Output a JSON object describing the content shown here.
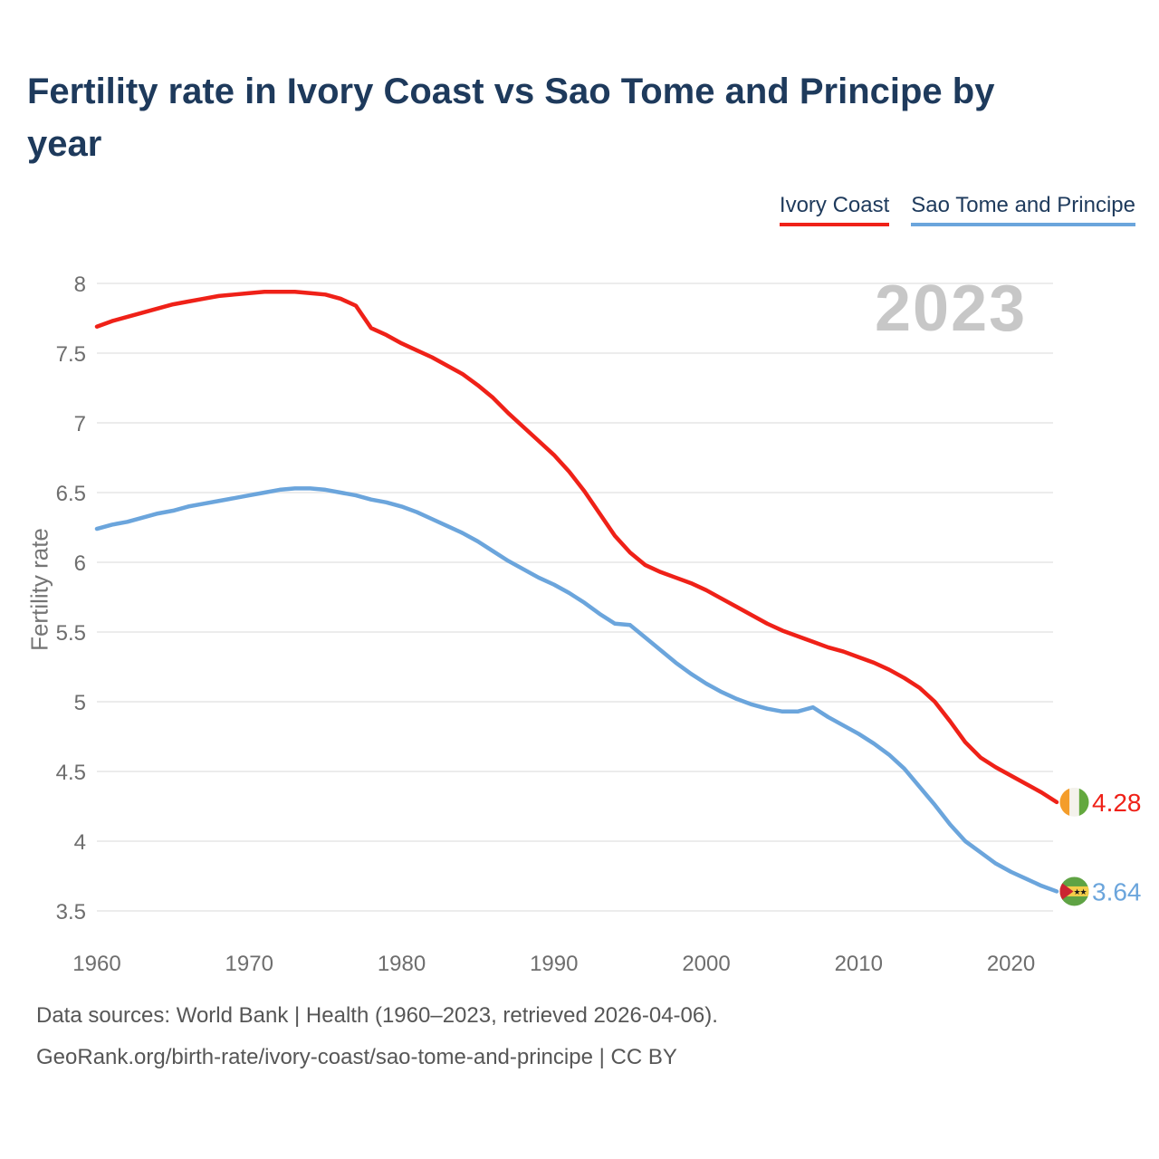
{
  "header": {
    "title": "Fertility rate in Ivory Coast vs Sao Tome and Principe by year"
  },
  "legend": {
    "items": [
      {
        "label": "Ivory Coast",
        "color": "#ef2118"
      },
      {
        "label": "Sao Tome and Principe",
        "color": "#6ba5dc"
      }
    ]
  },
  "watermark": "2023",
  "colors": {
    "title_navy": "#1e3a5c",
    "grid": "#ececec",
    "tick_text": "#6e6e6e",
    "watermark_gray": "#c7c7c7",
    "footer_gray": "#565656"
  },
  "chart_data": {
    "type": "line",
    "title": "Fertility rate in Ivory Coast vs Sao Tome and Principe by year",
    "xlabel": "",
    "ylabel": "Fertility rate",
    "grid": "horizontal",
    "legend_position": "top-right",
    "ylim": [
      3.5,
      8
    ],
    "yticks": [
      8,
      7.5,
      7,
      6.5,
      6,
      5.5,
      5,
      4.5,
      4,
      3.5
    ],
    "xticks": [
      1960,
      1970,
      1980,
      1990,
      2000,
      2010,
      2020
    ],
    "x": [
      1960,
      1961,
      1962,
      1963,
      1964,
      1965,
      1966,
      1967,
      1968,
      1969,
      1970,
      1971,
      1972,
      1973,
      1974,
      1975,
      1976,
      1977,
      1978,
      1979,
      1980,
      1981,
      1982,
      1983,
      1984,
      1985,
      1986,
      1987,
      1988,
      1989,
      1990,
      1991,
      1992,
      1993,
      1994,
      1995,
      1996,
      1997,
      1998,
      1999,
      2000,
      2001,
      2002,
      2003,
      2004,
      2005,
      2006,
      2007,
      2008,
      2009,
      2010,
      2011,
      2012,
      2013,
      2014,
      2015,
      2016,
      2017,
      2018,
      2019,
      2020,
      2021,
      2022,
      2023
    ],
    "series": [
      {
        "name": "Ivory Coast",
        "color": "#ef2118",
        "end_label": "4.28",
        "flag_icon": "ivory-coast-flag-icon",
        "values": [
          7.69,
          7.73,
          7.76,
          7.79,
          7.82,
          7.85,
          7.87,
          7.89,
          7.91,
          7.92,
          7.93,
          7.94,
          7.94,
          7.94,
          7.93,
          7.92,
          7.89,
          7.84,
          7.68,
          7.63,
          7.57,
          7.52,
          7.47,
          7.41,
          7.35,
          7.27,
          7.18,
          7.07,
          6.97,
          6.87,
          6.77,
          6.65,
          6.51,
          6.35,
          6.19,
          6.07,
          5.98,
          5.93,
          5.89,
          5.85,
          5.8,
          5.74,
          5.68,
          5.62,
          5.56,
          5.51,
          5.47,
          5.43,
          5.39,
          5.36,
          5.32,
          5.28,
          5.23,
          5.17,
          5.1,
          5.0,
          4.86,
          4.71,
          4.6,
          4.53,
          4.47,
          4.41,
          4.35,
          4.28
        ]
      },
      {
        "name": "Sao Tome and Principe",
        "color": "#6ba5dc",
        "end_label": "3.64",
        "flag_icon": "sao-tome-flag-icon",
        "values": [
          6.24,
          6.27,
          6.29,
          6.32,
          6.35,
          6.37,
          6.4,
          6.42,
          6.44,
          6.46,
          6.48,
          6.5,
          6.52,
          6.53,
          6.53,
          6.52,
          6.5,
          6.48,
          6.45,
          6.43,
          6.4,
          6.36,
          6.31,
          6.26,
          6.21,
          6.15,
          6.08,
          6.01,
          5.95,
          5.89,
          5.84,
          5.78,
          5.71,
          5.63,
          5.56,
          5.55,
          5.46,
          5.37,
          5.28,
          5.2,
          5.13,
          5.07,
          5.02,
          4.98,
          4.95,
          4.93,
          4.93,
          4.96,
          4.89,
          4.83,
          4.77,
          4.7,
          4.62,
          4.52,
          4.39,
          4.26,
          4.12,
          4.0,
          3.92,
          3.84,
          3.78,
          3.73,
          3.68,
          3.64
        ]
      }
    ]
  },
  "footer": {
    "line1": "Data sources: World Bank | Health (1960–2023, retrieved 2026-04-06).",
    "line2": "GeoRank.org/birth-rate/ivory-coast/sao-tome-and-principe | CC BY"
  }
}
